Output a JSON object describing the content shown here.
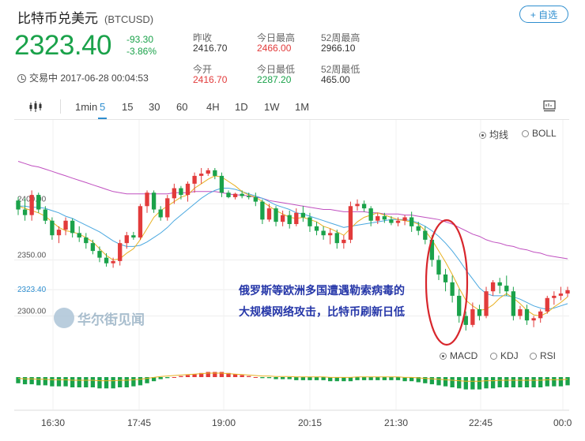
{
  "header": {
    "title": "比特币兑美元",
    "symbol": "(BTCUSD)",
    "watch_button": "+ 自选",
    "price": "2323.40",
    "change": "-93.30",
    "change_pct": "-3.86%",
    "status": "交易中 2017-06-28 00:04:53"
  },
  "stats": {
    "prev_close_label": "昨收",
    "prev_close": "2416.70",
    "open_label": "今开",
    "open": "2416.70",
    "high_label": "今日最高",
    "high": "2466.00",
    "low_label": "今日最低",
    "low": "2287.20",
    "w52_high_label": "52周最高",
    "w52_high": "2966.10",
    "w52_low_label": "52周最低",
    "w52_low": "465.00"
  },
  "toolbar": {
    "intervals": [
      "1min",
      "5",
      "15",
      "30",
      "60",
      "4H",
      "1D",
      "1W",
      "1M"
    ],
    "active": "5"
  },
  "overlay_options": [
    "均线",
    "BOLL"
  ],
  "overlay_selected": "均线",
  "indicator_options": [
    "MACD",
    "KDJ",
    "RSI"
  ],
  "indicator_selected": "MACD",
  "annotation": "俄罗斯等欧洲多国遭遇勒索病毒的大规模网络攻击，比特币刷新日低",
  "watermark": "华尔街见闻",
  "colors": {
    "up": "#e23b3b",
    "down": "#1aa24a",
    "accent": "#2e8ecf",
    "ma_long": "#c050c0",
    "ma_mid": "#4aa8e0",
    "ma_short": "#e8b020"
  },
  "chart_data": {
    "type": "candlestick",
    "yticks": [
      "2400.00",
      "2350.00",
      "2300.00"
    ],
    "ylim": [
      2275,
      2470
    ],
    "current_price_label": "2323.40",
    "xticks": [
      "16:30",
      "17:45",
      "19:00",
      "20:15",
      "21:30",
      "22:45",
      "00:0"
    ],
    "candles": [
      [
        2403,
        2406,
        2390,
        2395
      ],
      [
        2395,
        2405,
        2385,
        2390
      ],
      [
        2390,
        2412,
        2385,
        2408
      ],
      [
        2408,
        2410,
        2392,
        2395
      ],
      [
        2395,
        2398,
        2382,
        2385
      ],
      [
        2385,
        2388,
        2368,
        2372
      ],
      [
        2372,
        2380,
        2365,
        2377
      ],
      [
        2377,
        2388,
        2372,
        2385
      ],
      [
        2385,
        2387,
        2370,
        2374
      ],
      [
        2374,
        2380,
        2366,
        2370
      ],
      [
        2370,
        2374,
        2360,
        2365
      ],
      [
        2365,
        2368,
        2355,
        2358
      ],
      [
        2358,
        2362,
        2348,
        2352
      ],
      [
        2352,
        2356,
        2344,
        2347
      ],
      [
        2347,
        2352,
        2343,
        2349
      ],
      [
        2349,
        2368,
        2345,
        2365
      ],
      [
        2365,
        2375,
        2360,
        2372
      ],
      [
        2372,
        2375,
        2368,
        2370
      ],
      [
        2370,
        2400,
        2368,
        2398
      ],
      [
        2398,
        2412,
        2392,
        2410
      ],
      [
        2410,
        2412,
        2392,
        2395
      ],
      [
        2395,
        2398,
        2385,
        2388
      ],
      [
        2388,
        2408,
        2385,
        2405
      ],
      [
        2405,
        2418,
        2400,
        2414
      ],
      [
        2414,
        2416,
        2404,
        2408
      ],
      [
        2408,
        2420,
        2402,
        2418
      ],
      [
        2418,
        2428,
        2410,
        2425
      ],
      [
        2425,
        2432,
        2418,
        2427
      ],
      [
        2427,
        2432,
        2425,
        2430
      ],
      [
        2430,
        2432,
        2422,
        2425
      ],
      [
        2425,
        2428,
        2406,
        2410
      ],
      [
        2410,
        2412,
        2405,
        2406
      ],
      [
        2406,
        2410,
        2404,
        2409
      ],
      [
        2409,
        2412,
        2405,
        2407
      ],
      [
        2407,
        2410,
        2404,
        2406
      ],
      [
        2406,
        2410,
        2398,
        2402
      ],
      [
        2402,
        2404,
        2382,
        2386
      ],
      [
        2386,
        2400,
        2384,
        2396
      ],
      [
        2396,
        2398,
        2380,
        2384
      ],
      [
        2384,
        2394,
        2380,
        2390
      ],
      [
        2390,
        2394,
        2378,
        2382
      ],
      [
        2382,
        2396,
        2380,
        2392
      ],
      [
        2392,
        2398,
        2384,
        2388
      ],
      [
        2388,
        2392,
        2375,
        2380
      ],
      [
        2380,
        2384,
        2372,
        2376
      ],
      [
        2376,
        2380,
        2368,
        2372
      ],
      [
        2372,
        2378,
        2364,
        2374
      ],
      [
        2374,
        2377,
        2360,
        2365
      ],
      [
        2365,
        2372,
        2360,
        2368
      ],
      [
        2368,
        2402,
        2365,
        2398
      ],
      [
        2398,
        2404,
        2394,
        2400
      ],
      [
        2400,
        2403,
        2393,
        2396
      ],
      [
        2396,
        2398,
        2380,
        2385
      ],
      [
        2385,
        2392,
        2382,
        2389
      ],
      [
        2389,
        2392,
        2383,
        2386
      ],
      [
        2386,
        2389,
        2381,
        2383
      ],
      [
        2383,
        2388,
        2380,
        2385
      ],
      [
        2385,
        2390,
        2381,
        2388
      ],
      [
        2388,
        2393,
        2375,
        2380
      ],
      [
        2380,
        2384,
        2372,
        2376
      ],
      [
        2376,
        2380,
        2364,
        2368
      ],
      [
        2368,
        2372,
        2344,
        2350
      ],
      [
        2350,
        2354,
        2332,
        2337
      ],
      [
        2337,
        2342,
        2322,
        2330
      ],
      [
        2330,
        2336,
        2312,
        2318
      ],
      [
        2318,
        2324,
        2294,
        2300
      ],
      [
        2300,
        2304,
        2287,
        2292
      ],
      [
        2292,
        2312,
        2290,
        2306
      ],
      [
        2306,
        2310,
        2296,
        2300
      ],
      [
        2300,
        2326,
        2298,
        2322
      ],
      [
        2322,
        2332,
        2318,
        2330
      ],
      [
        2330,
        2334,
        2320,
        2327
      ],
      [
        2327,
        2336,
        2318,
        2322
      ],
      [
        2322,
        2326,
        2296,
        2300
      ],
      [
        2300,
        2309,
        2297,
        2306
      ],
      [
        2306,
        2310,
        2292,
        2296
      ],
      [
        2296,
        2300,
        2290,
        2298
      ],
      [
        2298,
        2306,
        2294,
        2304
      ],
      [
        2304,
        2318,
        2302,
        2316
      ],
      [
        2316,
        2322,
        2310,
        2318
      ],
      [
        2318,
        2326,
        2314,
        2320
      ],
      [
        2320,
        2326,
        2317,
        2323
      ]
    ],
    "ma_long": [
      2438,
      2436,
      2434,
      2433,
      2431,
      2429,
      2427,
      2425,
      2423,
      2421,
      2419,
      2417,
      2415,
      2413,
      2411,
      2410,
      2409,
      2409,
      2409,
      2409,
      2409,
      2409,
      2409,
      2410,
      2410,
      2410,
      2411,
      2411,
      2411,
      2411,
      2410,
      2409,
      2408,
      2408,
      2407,
      2406,
      2405,
      2403,
      2402,
      2401,
      2400,
      2399,
      2398,
      2397,
      2396,
      2395,
      2395,
      2394,
      2393,
      2393,
      2393,
      2393,
      2392,
      2392,
      2391,
      2391,
      2391,
      2390,
      2390,
      2389,
      2388,
      2387,
      2386,
      2384,
      2382,
      2379,
      2376,
      2373,
      2371,
      2368,
      2366,
      2365,
      2363,
      2362,
      2360,
      2359,
      2357,
      2356,
      2354,
      2353,
      2352,
      2351
    ],
    "ma_mid": [
      2398,
      2398,
      2397,
      2397,
      2396,
      2394,
      2392,
      2389,
      2387,
      2384,
      2381,
      2378,
      2375,
      2371,
      2367,
      2364,
      2362,
      2362,
      2363,
      2366,
      2370,
      2374,
      2379,
      2385,
      2390,
      2395,
      2400,
      2405,
      2409,
      2412,
      2414,
      2414,
      2413,
      2411,
      2409,
      2407,
      2405,
      2402,
      2399,
      2397,
      2395,
      2392,
      2391,
      2389,
      2387,
      2385,
      2383,
      2381,
      2379,
      2380,
      2381,
      2382,
      2383,
      2384,
      2385,
      2386,
      2386,
      2386,
      2385,
      2383,
      2380,
      2376,
      2371,
      2365,
      2358,
      2350,
      2341,
      2333,
      2325,
      2320,
      2318,
      2318,
      2318,
      2317,
      2315,
      2312,
      2309,
      2307,
      2306,
      2307,
      2309,
      2311
    ],
    "ma_short": [
      2398,
      2396,
      2394,
      2392,
      2389,
      2384,
      2379,
      2376,
      2375,
      2373,
      2370,
      2366,
      2360,
      2354,
      2350,
      2351,
      2356,
      2360,
      2368,
      2378,
      2388,
      2394,
      2398,
      2402,
      2406,
      2408,
      2414,
      2418,
      2422,
      2425,
      2424,
      2420,
      2416,
      2411,
      2408,
      2406,
      2402,
      2398,
      2394,
      2391,
      2388,
      2387,
      2388,
      2386,
      2384,
      2380,
      2378,
      2375,
      2372,
      2378,
      2384,
      2388,
      2390,
      2392,
      2390,
      2388,
      2386,
      2385,
      2384,
      2382,
      2376,
      2368,
      2358,
      2348,
      2337,
      2325,
      2314,
      2309,
      2305,
      2306,
      2310,
      2316,
      2320,
      2316,
      2311,
      2305,
      2301,
      2300,
      2303,
      2308,
      2312,
      2317
    ],
    "macd_hist": [
      -6,
      -7,
      -7,
      -8,
      -8,
      -9,
      -9,
      -9,
      -10,
      -10,
      -10,
      -10,
      -11,
      -11,
      -11,
      -10,
      -10,
      -9,
      -8,
      -6,
      -4,
      -2,
      -1,
      0,
      1,
      2,
      3,
      4,
      5,
      5,
      5,
      4,
      3,
      2,
      1,
      0,
      -1,
      -1,
      -2,
      -2,
      -2,
      -3,
      -3,
      -3,
      -3,
      -3,
      -4,
      -4,
      -4,
      -4,
      -3,
      -3,
      -3,
      -3,
      -3,
      -3,
      -3,
      -4,
      -4,
      -5,
      -6,
      -7,
      -8,
      -9,
      -10,
      -11,
      -12,
      -12,
      -12,
      -11,
      -11,
      -10,
      -10,
      -10,
      -10,
      -10,
      -10,
      -10,
      -9,
      -9,
      -9,
      -8
    ]
  }
}
